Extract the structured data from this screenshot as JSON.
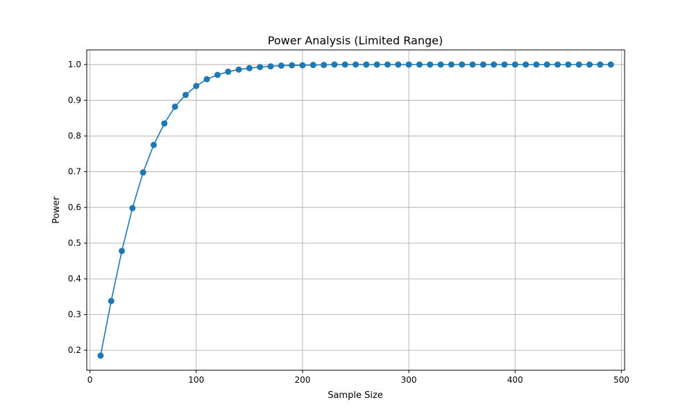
{
  "chart_data": {
    "type": "line",
    "title": "Power Analysis (Limited Range)",
    "xlabel": "Sample Size",
    "ylabel": "Power",
    "xlim": [
      -3,
      503
    ],
    "ylim": [
      0.144,
      1.041
    ],
    "xticks": [
      0,
      100,
      200,
      300,
      400,
      500
    ],
    "yticks": [
      0.2,
      0.3,
      0.4,
      0.5,
      0.6,
      0.7,
      0.8,
      0.9,
      1.0
    ],
    "grid": true,
    "marker": "circle",
    "color": "#1f77b4",
    "x": [
      10,
      20,
      30,
      40,
      50,
      60,
      70,
      80,
      90,
      100,
      110,
      120,
      130,
      140,
      150,
      160,
      170,
      180,
      190,
      200,
      210,
      220,
      230,
      240,
      250,
      260,
      270,
      280,
      290,
      300,
      310,
      320,
      330,
      340,
      350,
      360,
      370,
      380,
      390,
      400,
      410,
      420,
      430,
      440,
      450,
      460,
      470,
      480,
      490
    ],
    "y": [
      0.185,
      0.338,
      0.478,
      0.598,
      0.698,
      0.775,
      0.835,
      0.882,
      0.915,
      0.94,
      0.959,
      0.971,
      0.98,
      0.986,
      0.99,
      0.993,
      0.995,
      0.997,
      0.998,
      0.998,
      0.999,
      0.999,
      1.0,
      1.0,
      1.0,
      1.0,
      1.0,
      1.0,
      1.0,
      1.0,
      1.0,
      1.0,
      1.0,
      1.0,
      1.0,
      1.0,
      1.0,
      1.0,
      1.0,
      1.0,
      1.0,
      1.0,
      1.0,
      1.0,
      1.0,
      1.0,
      1.0,
      1.0,
      1.0
    ]
  }
}
